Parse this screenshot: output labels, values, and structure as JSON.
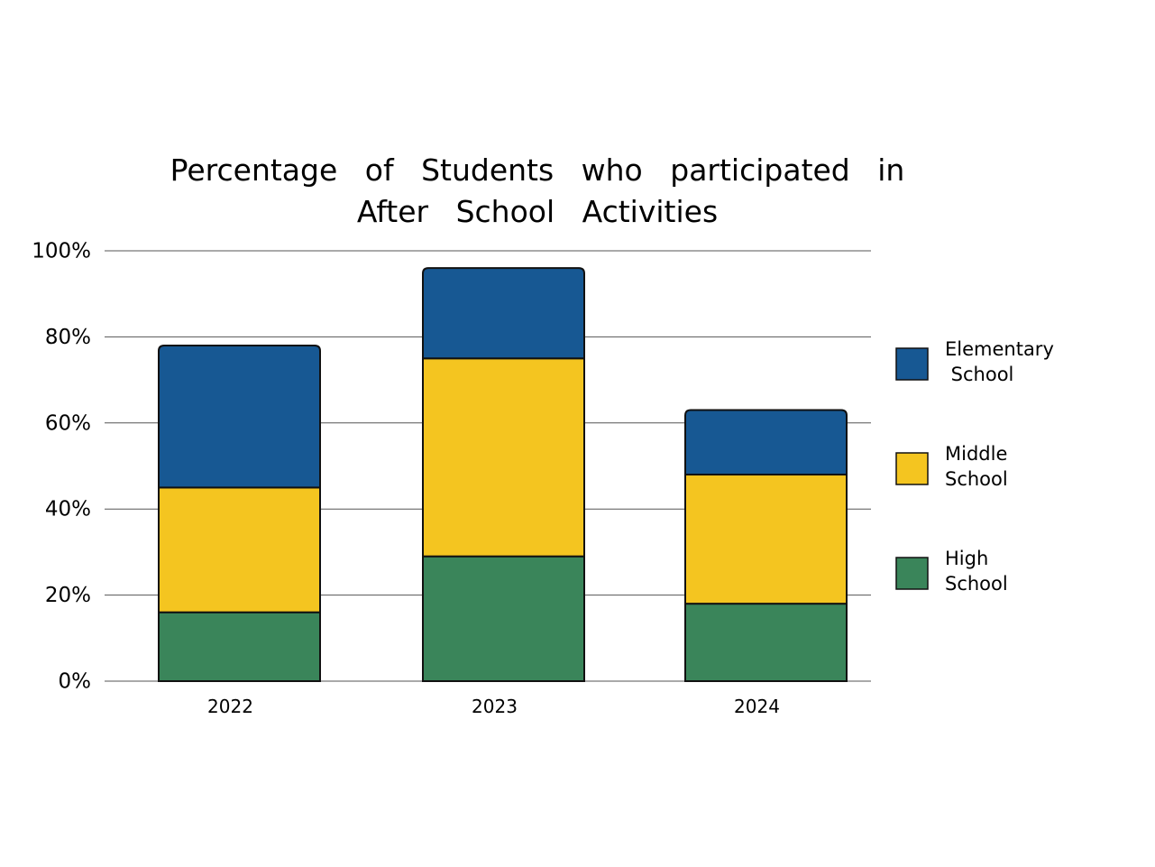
{
  "chart_data": {
    "type": "bar",
    "stacked": true,
    "title_lines": [
      "Percentage of Students who participated in",
      "After School Activities"
    ],
    "categories": [
      "2022",
      "2023",
      "2024"
    ],
    "y_tick_labels": [
      "0%",
      "20%",
      "40%",
      "60%",
      "80%",
      "100%"
    ],
    "ylim": [
      0,
      100
    ],
    "grid": true,
    "legend_position": "right",
    "series": [
      {
        "name": "High School",
        "legend_lines": [
          "High",
          "School"
        ],
        "color": "#3a855a",
        "values": [
          16,
          29,
          18
        ]
      },
      {
        "name": "Middle School",
        "legend_lines": [
          "Middle",
          "School"
        ],
        "color": "#f4c520",
        "values": [
          29,
          46,
          30
        ]
      },
      {
        "name": "Elementary School",
        "legend_lines": [
          "Elementary",
          " School"
        ],
        "color": "#175893",
        "values": [
          33,
          21,
          15
        ]
      }
    ]
  }
}
